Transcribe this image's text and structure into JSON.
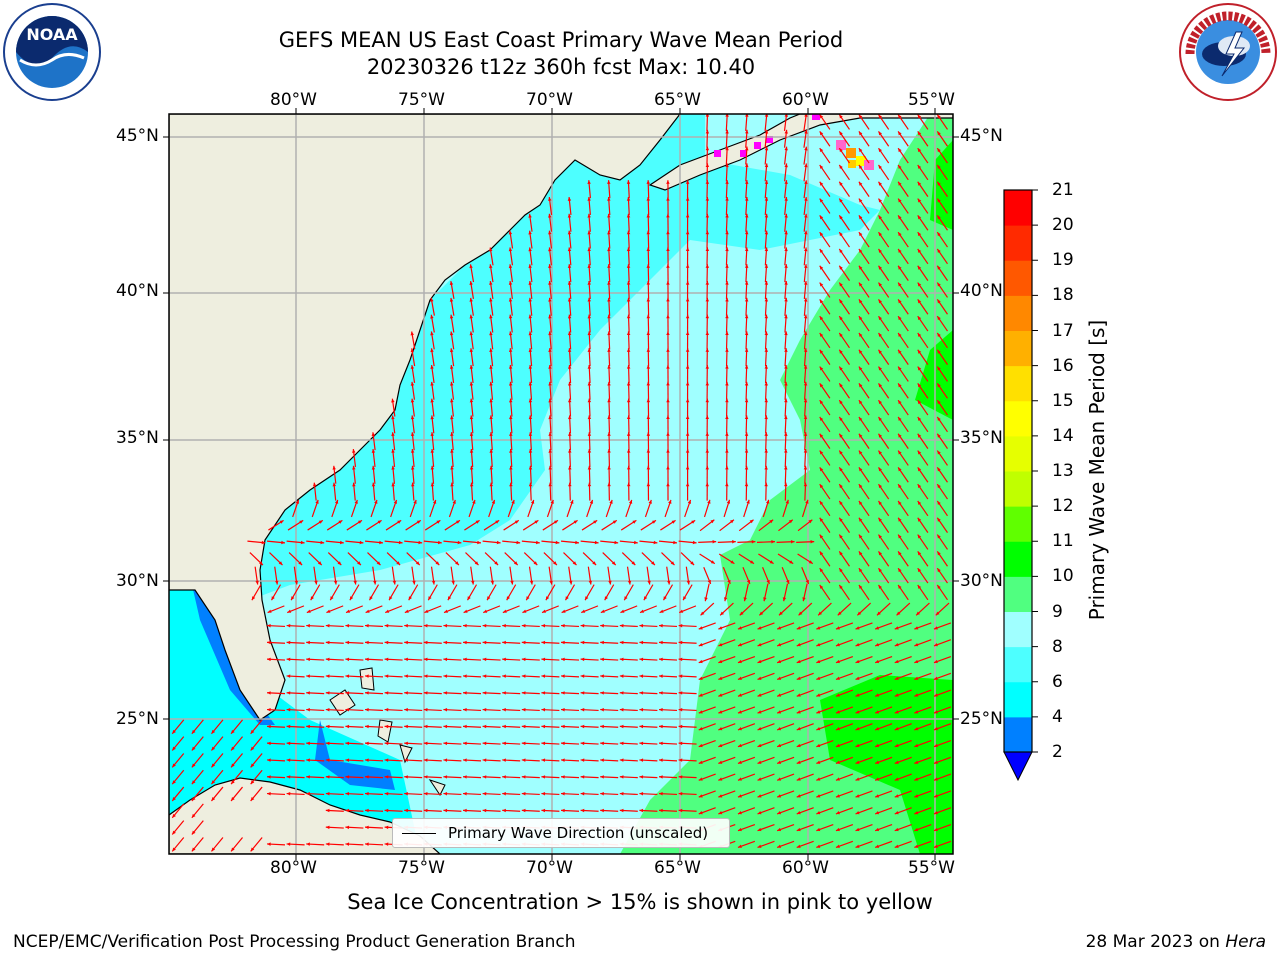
{
  "title": "GEFS MEAN US East Coast Primary Wave Mean Period",
  "subtitle_line": "20230326 t12z 360h fcst   Max: 10.40",
  "lon_labels": [
    "80°W",
    "75°W",
    "70°W",
    "65°W",
    "60°W",
    "55°W"
  ],
  "lat_labels": [
    "45°N",
    "40°N",
    "35°N",
    "30°N",
    "25°N"
  ],
  "colorbar": {
    "label": "Primary Wave Mean Period [s]",
    "ticks": [
      "2",
      "4",
      "6",
      "8",
      "9",
      "10",
      "11",
      "12",
      "13",
      "14",
      "15",
      "16",
      "17",
      "18",
      "19",
      "20",
      "21"
    ],
    "colors": [
      "#0000ff",
      "#0080ff",
      "#00ffff",
      "#4dffff",
      "#a0ffff",
      "#50ff80",
      "#00ff00",
      "#60ff00",
      "#c0ff00",
      "#e6ff00",
      "#ffff00",
      "#ffe000",
      "#ffb000",
      "#ff8800",
      "#ff5800",
      "#ff2a00",
      "#ff0000"
    ],
    "extend": "min"
  },
  "legend": {
    "label": "Primary Wave Direction (unscaled)"
  },
  "note": "Sea Ice Concentration > 15% is shown in pink to yellow",
  "footer": {
    "left": "NCEP/EMC/Verification Post Processing Product Generation Branch",
    "right_date": "28 Mar 2023 on ",
    "right_machine": "Hera"
  },
  "colors": {
    "land": "#eeeedf",
    "arrow": "#ff0000",
    "grid": "#b0b0b0"
  }
}
